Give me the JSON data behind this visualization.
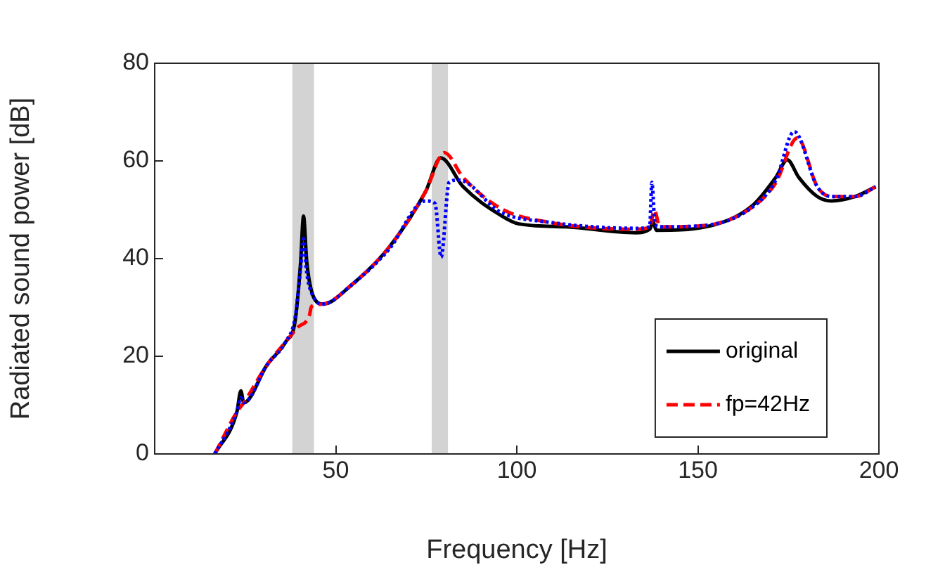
{
  "chart_data": {
    "type": "line",
    "xlabel": "Frequency [Hz]",
    "ylabel": "Radiated sound power [dB]",
    "xlim": [
      0,
      200
    ],
    "xticks": [
      50,
      100,
      150,
      200
    ],
    "ylim": [
      0,
      80
    ],
    "yticks": [
      0,
      20,
      40,
      60,
      80
    ],
    "grid": false,
    "legend": "bottom right",
    "marker": "none",
    "bands": [
      {
        "axis": "x",
        "from": 38,
        "to": 44,
        "color": "#d3d3d3"
      },
      {
        "axis": "x",
        "from": 76.5,
        "to": 81,
        "color": "#d3d3d3"
      }
    ],
    "series": [
      {
        "name": "original",
        "color": "#000000",
        "line_style": "solid",
        "x": [
          16.6,
          22.7,
          23.8,
          24.6,
          31,
          36.2,
          38.8,
          40.3,
          41.1,
          42,
          43.9,
          46.5,
          54.2,
          64.6,
          74.8,
          79,
          85.2,
          95.5,
          100.6,
          113.5,
          132.8,
          136.7,
          137.6,
          138.6,
          152.1,
          165,
          171.5,
          174.7,
          177.9,
          183,
          186.9,
          193.4,
          199.1
        ],
        "values": [
          0,
          8.6,
          12.9,
          10.5,
          18.2,
          23,
          27.3,
          39.3,
          48.7,
          39.3,
          32.1,
          30.7,
          34.5,
          42.2,
          53.7,
          60.6,
          54.7,
          48.9,
          47.1,
          46.5,
          45.3,
          46,
          47.5,
          45.8,
          46.5,
          50.8,
          56.6,
          60.2,
          56.6,
          52.7,
          51.8,
          52.7,
          54.7
        ]
      },
      {
        "name": "fp=42Hz",
        "color": "#ff0000",
        "line_style": "dashed",
        "x": [
          16.6,
          22.7,
          24.6,
          31,
          36.2,
          39.5,
          42.7,
          43.3,
          46.5,
          54.2,
          64.6,
          74.8,
          80,
          85.2,
          95.5,
          108.3,
          132.8,
          136.7,
          138,
          139.5,
          152.1,
          165,
          171.5,
          177.5,
          183,
          186.9,
          193.4,
          199.1
        ],
        "values": [
          0,
          8.6,
          10.5,
          18.2,
          23,
          25.9,
          28.3,
          30.2,
          30.7,
          34.5,
          42.2,
          53.7,
          61.7,
          56.6,
          50.3,
          47.5,
          46,
          46.5,
          49.9,
          46.5,
          46.8,
          50.5,
          55.5,
          64.7,
          54.7,
          52.7,
          52.7,
          54.7
        ]
      },
      {
        "color": "#0000ff",
        "line_style": "dotted",
        "x": [
          16.6,
          22.7,
          23.8,
          24.6,
          31,
          36.2,
          38.8,
          40.3,
          41.1,
          42,
          43.9,
          46.5,
          54.2,
          64.6,
          74.8,
          77.4,
          79.1,
          81.3,
          83.9,
          95.5,
          108.3,
          132.8,
          136.7,
          137.3,
          138.2,
          139.5,
          152.1,
          165,
          171.5,
          176.6,
          183,
          186.9,
          193.4,
          199.1
        ],
        "values": [
          0,
          8.6,
          11.5,
          10.5,
          18.2,
          23,
          28,
          38,
          44.1,
          37,
          32.1,
          30.7,
          34.5,
          41.8,
          51.8,
          51.3,
          40.3,
          55.6,
          56.1,
          49.5,
          47.5,
          46.2,
          46.5,
          55.6,
          47,
          46.5,
          46.8,
          50.5,
          56,
          66,
          54.7,
          52.7,
          52.7,
          54.7
        ]
      }
    ]
  }
}
